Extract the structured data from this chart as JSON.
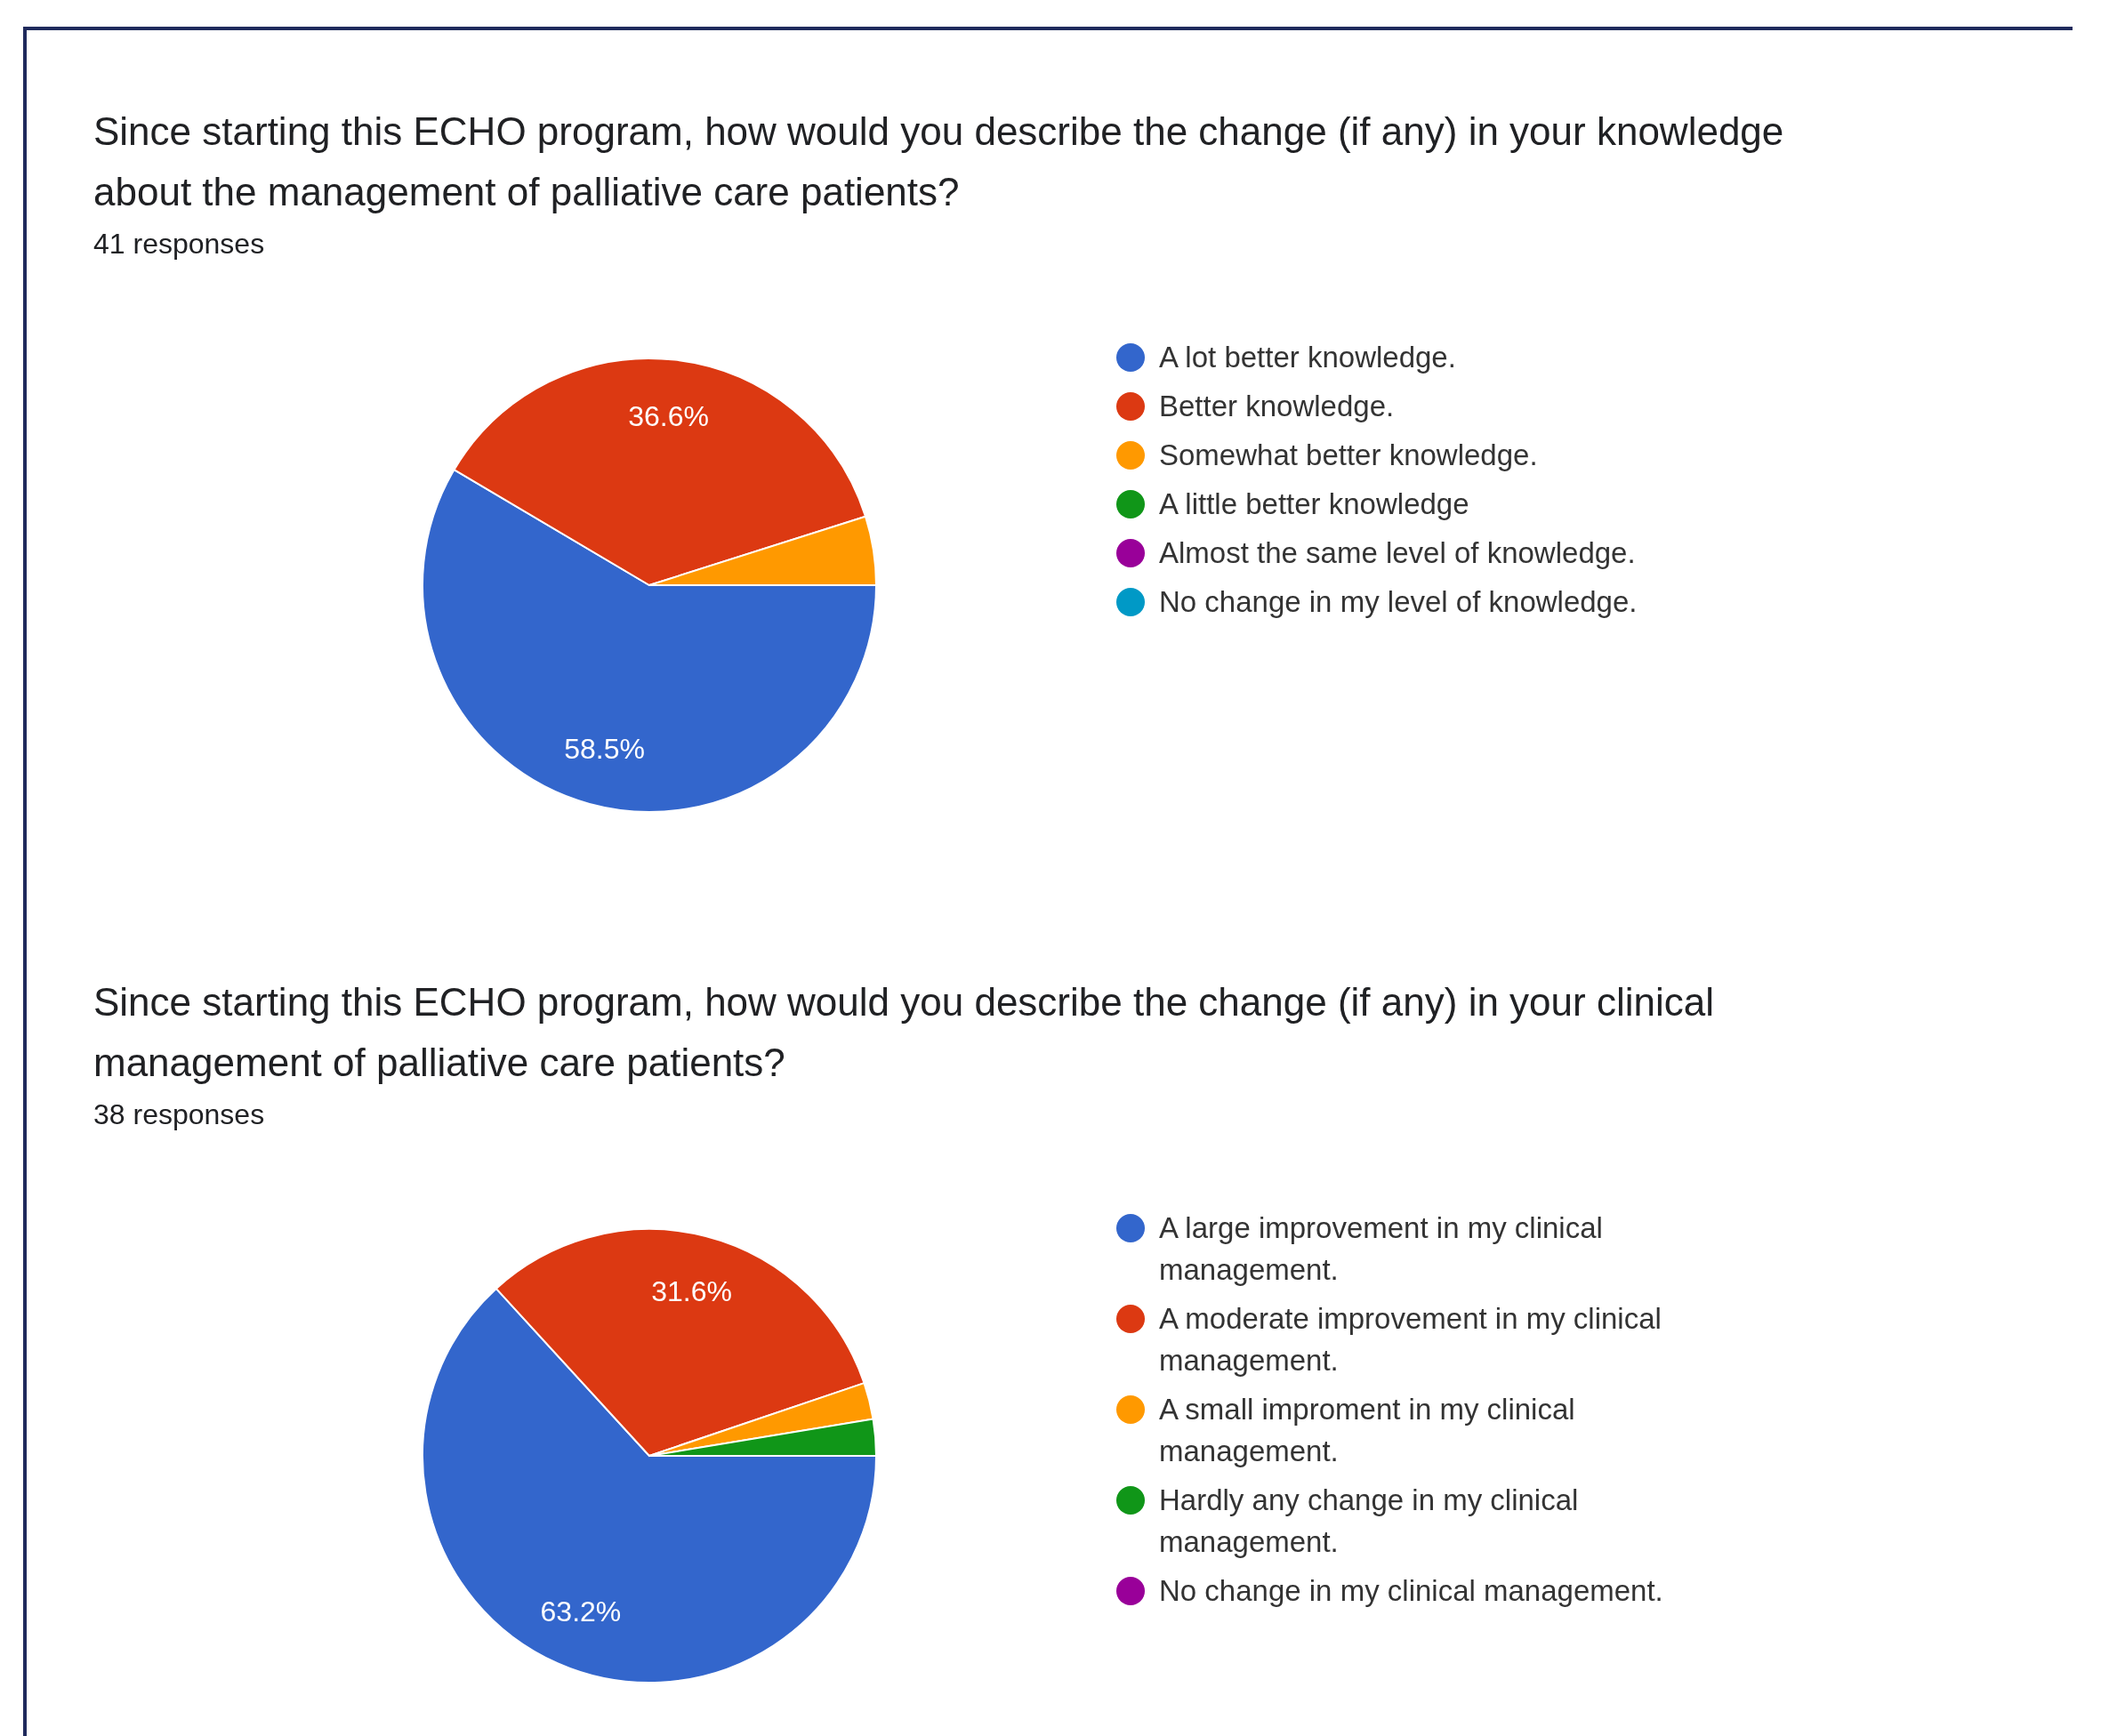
{
  "chart_data": [
    {
      "type": "pie",
      "title": "Since starting this ECHO program, how would you describe the change (if any) in your knowledge about the management of palliative care patients?",
      "subtitle": "41 responses",
      "categories": [
        "A lot better knowledge.",
        "Better knowledge.",
        "Somewhat better knowledge.",
        "A little better knowledge",
        "Almost the same level of knowledge.",
        "No change in my level of knowledge."
      ],
      "values": [
        58.5,
        36.6,
        4.9,
        0,
        0,
        0
      ],
      "colors": [
        "#3366cc",
        "#dc3912",
        "#ff9900",
        "#109618",
        "#990099",
        "#0099c6"
      ],
      "value_labels": [
        "58.5%",
        "36.6%",
        null,
        null,
        null,
        null
      ],
      "legend": "right"
    },
    {
      "type": "pie",
      "title": "Since starting this ECHO program, how would you describe the change (if any) in your clinical management of palliative care patients?",
      "subtitle": "38 responses",
      "categories": [
        "A large improvement in my clinical management.",
        "A moderate improvement in my clinical management.",
        "A small improment in my clinical management.",
        "Hardly any change in my clinical management.",
        "No change in my clinical management."
      ],
      "values": [
        63.2,
        31.6,
        2.6,
        2.6,
        0
      ],
      "colors": [
        "#3366cc",
        "#dc3912",
        "#ff9900",
        "#109618",
        "#990099"
      ],
      "value_labels": [
        "63.2%",
        "31.6%",
        null,
        null,
        null
      ],
      "legend": "right"
    }
  ]
}
